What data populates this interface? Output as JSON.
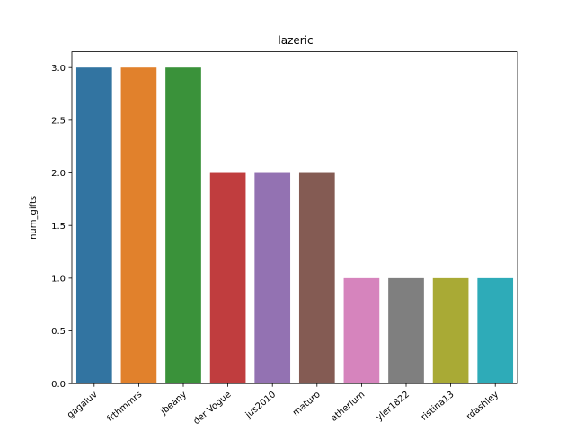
{
  "chart_data": {
    "type": "bar",
    "title": "lazeric",
    "xlabel": "",
    "ylabel": "num_gifts",
    "ylim": [
      0,
      3.15
    ],
    "yticks": [
      "0.0",
      "0.5",
      "1.0",
      "1.5",
      "2.0",
      "2.5",
      "3.0"
    ],
    "categories": [
      "gagaluv",
      "frthmmrs",
      "jbeany",
      "der Vogue",
      "jus2010",
      "maturo",
      "atherlum",
      "yler1822",
      "ristina13",
      "rdashley"
    ],
    "values": [
      3,
      3,
      3,
      2,
      2,
      2,
      1,
      1,
      1,
      1
    ],
    "colors": [
      "#3274a1",
      "#e1812c",
      "#3a923a",
      "#c03d3e",
      "#9372b2",
      "#845b53",
      "#d684bd",
      "#7f7f7f",
      "#a9aa35",
      "#2eabb8"
    ],
    "grid": false,
    "legend": "none"
  }
}
